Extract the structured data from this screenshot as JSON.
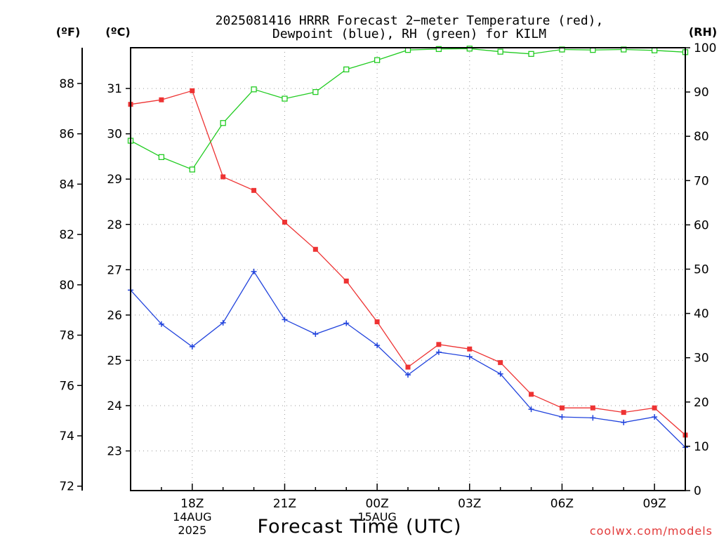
{
  "chart_data": {
    "type": "line",
    "title": "2025081416 HRRR Forecast 2−meter Temperature (red),",
    "subtitle": "Dewpoint (blue), RH (green) for KILM",
    "xlabel": "Forecast Time (UTC)",
    "unit_labels": {
      "f": "(ºF)",
      "c": "(ºC)",
      "rh": "(RH)"
    },
    "credit": "coolwx.com/models",
    "x_ticks": [
      {
        "hour": 2,
        "label": "18Z",
        "date": "14AUG",
        "year": "2025"
      },
      {
        "hour": 5,
        "label": "21Z"
      },
      {
        "hour": 8,
        "label": "00Z",
        "date": "15AUG"
      },
      {
        "hour": 11,
        "label": "03Z"
      },
      {
        "hour": 14,
        "label": "06Z"
      },
      {
        "hour": 17,
        "label": "09Z"
      }
    ],
    "x_range": [
      0,
      18
    ],
    "ylim_c": [
      22.125,
      31.9
    ],
    "ylim_rh": [
      0,
      100
    ],
    "y_ticks_c": [
      23,
      24,
      25,
      26,
      27,
      28,
      29,
      30,
      31
    ],
    "y_ticks_f": [
      72,
      74,
      76,
      78,
      80,
      82,
      84,
      86,
      88
    ],
    "y_ticks_rh": [
      0,
      10,
      20,
      30,
      40,
      50,
      60,
      70,
      80,
      90,
      100
    ],
    "grid": true,
    "hours": [
      0,
      1,
      2,
      3,
      4,
      5,
      6,
      7,
      8,
      9,
      10,
      11,
      12,
      13,
      14,
      15,
      16,
      17,
      18
    ],
    "series": [
      {
        "name": "Temperature",
        "axis": "c",
        "color": "#ee3333",
        "marker": "filled-square",
        "values": [
          30.65,
          30.75,
          30.95,
          29.05,
          28.75,
          28.05,
          27.45,
          26.75,
          25.85,
          24.85,
          25.35,
          25.25,
          24.95,
          24.25,
          23.95,
          23.95,
          23.85,
          23.95,
          23.35
        ]
      },
      {
        "name": "Dewpoint",
        "axis": "c",
        "color": "#2244dd",
        "marker": "plus",
        "values": [
          26.55,
          25.8,
          25.3,
          25.83,
          26.96,
          25.9,
          25.58,
          25.82,
          25.33,
          24.68,
          25.18,
          25.08,
          24.7,
          23.92,
          23.75,
          23.73,
          23.63,
          23.75,
          23.08
        ]
      },
      {
        "name": "RH",
        "axis": "rh",
        "color": "#22cc22",
        "marker": "open-square",
        "values": [
          79,
          75.3,
          72.5,
          83,
          90.6,
          88.5,
          90,
          95.1,
          97.2,
          99.5,
          99.7,
          99.8,
          99.1,
          98.6,
          99.6,
          99.5,
          99.6,
          99.4,
          99
        ]
      }
    ]
  }
}
